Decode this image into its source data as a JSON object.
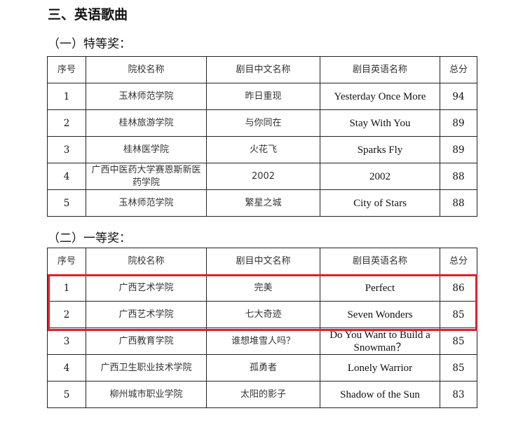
{
  "section_title": "三、英语歌曲",
  "headers": [
    "序号",
    "院校名称",
    "剧目中文名称",
    "剧目英语名称",
    "总分"
  ],
  "groups": [
    {
      "title": "（一）特等奖：",
      "rows": [
        [
          "1",
          "玉林师范学院",
          "昨日重现",
          "Yesterday Once More",
          "94"
        ],
        [
          "2",
          "桂林旅游学院",
          "与你同在",
          "Stay With You",
          "89"
        ],
        [
          "3",
          "桂林医学院",
          "火花飞",
          "Sparks Fly",
          "89"
        ],
        [
          "4",
          "广西中医药大学赛恩斯新医药学院",
          "2002",
          "2002",
          "88"
        ],
        [
          "5",
          "玉林师范学院",
          "繁星之城",
          "City of Stars",
          "88"
        ]
      ]
    },
    {
      "title": "（二）一等奖：",
      "rows": [
        [
          "1",
          "广西艺术学院",
          "完美",
          "Perfect",
          "86"
        ],
        [
          "2",
          "广西艺术学院",
          "七大奇迹",
          "Seven Wonders",
          "85"
        ],
        [
          "3",
          "广西教育学院",
          "谁想堆雪人吗？",
          "Do You Want to Build a Snowman？",
          "85"
        ],
        [
          "4",
          "广西卫生职业技术学院",
          "孤勇者",
          "Lonely Warrior",
          "85"
        ],
        [
          "5",
          "柳州城市职业学院",
          "太阳的影子",
          "Shadow of the Sun",
          "83"
        ]
      ]
    }
  ],
  "highlight_color": "#e0202a"
}
